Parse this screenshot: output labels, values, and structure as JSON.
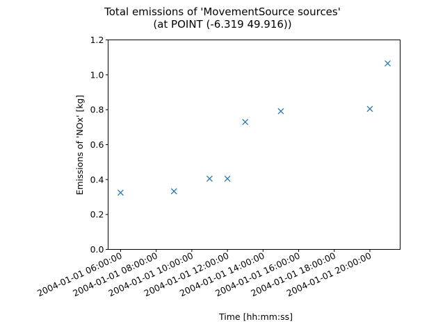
{
  "chart_data": {
    "type": "scatter",
    "title": "Total emissions of 'MovementSource sources'",
    "subtitle": "(at POINT (-6.319 49.916))",
    "xlabel": "Time [hh:mm:ss]",
    "ylabel": "Emissions of 'NOx' [kg]",
    "x_ticks": [
      "2004-01-01 06:00:00",
      "2004-01-01 08:00:00",
      "2004-01-01 10:00:00",
      "2004-01-01 12:00:00",
      "2004-01-01 14:00:00",
      "2004-01-01 16:00:00",
      "2004-01-01 18:00:00",
      "2004-01-01 20:00:00"
    ],
    "y_ticks": [
      "0.0",
      "0.2",
      "0.4",
      "0.6",
      "0.8",
      "1.0",
      "1.2"
    ],
    "xlim": [
      "2004-01-01 05:18:00",
      "2004-01-01 21:42:00"
    ],
    "ylim": [
      0,
      1.2
    ],
    "marker": "x",
    "color": "#1f77b4",
    "series": [
      {
        "x": [
          "2004-01-01 06:00:00",
          "2004-01-01 09:00:00",
          "2004-01-01 11:00:00",
          "2004-01-01 12:00:00",
          "2004-01-01 13:00:00",
          "2004-01-01 15:00:00",
          "2004-01-01 20:00:00",
          "2004-01-01 21:00:00"
        ],
        "y": [
          0.325,
          0.333,
          0.405,
          0.405,
          0.73,
          0.792,
          0.805,
          1.065
        ]
      }
    ]
  }
}
